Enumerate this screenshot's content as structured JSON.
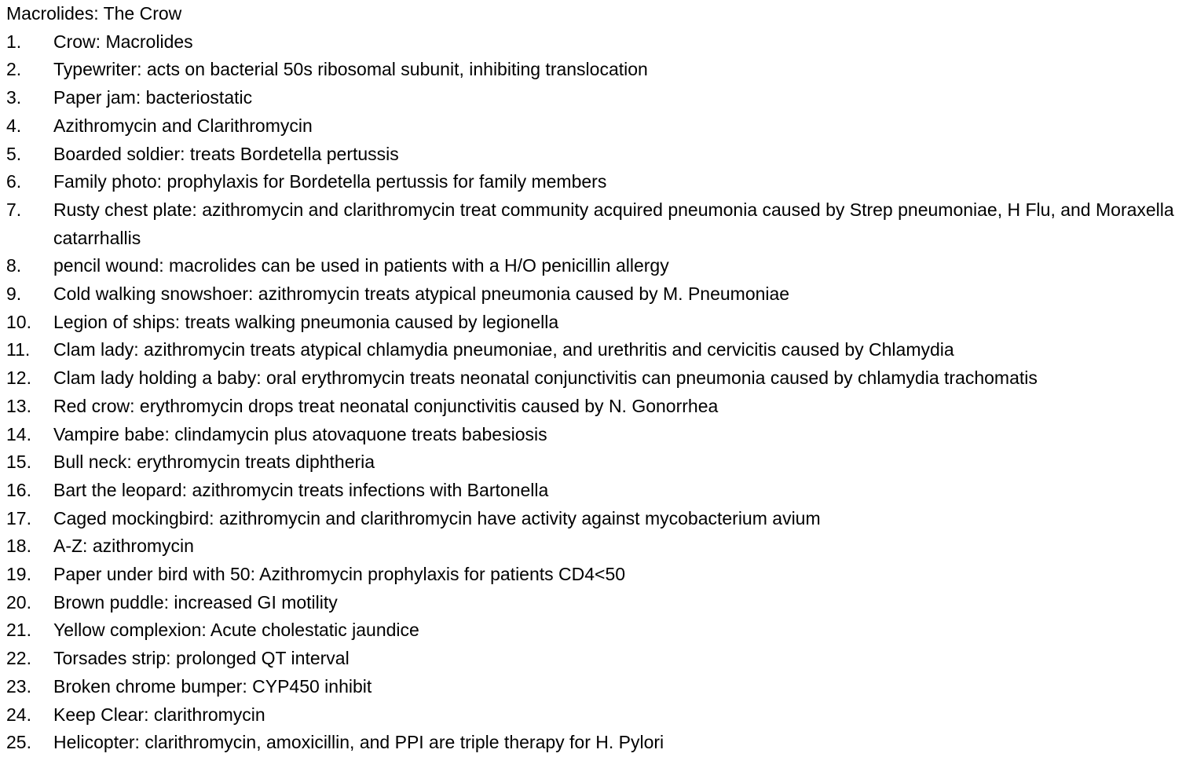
{
  "document": {
    "title": "Macrolides: The Crow",
    "items": [
      {
        "num": "1.",
        "text": "Crow: Macrolides"
      },
      {
        "num": "2.",
        "text": "Typewriter: acts on bacterial 50s ribosomal subunit, inhibiting translocation"
      },
      {
        "num": "3.",
        "text": "Paper jam: bacteriostatic"
      },
      {
        "num": "4.",
        "text": "Azithromycin and Clarithromycin"
      },
      {
        "num": "5.",
        "text": "Boarded soldier: treats Bordetella pertussis"
      },
      {
        "num": "6.",
        "text": "Family photo: prophylaxis for Bordetella pertussis for family members"
      },
      {
        "num": "7.",
        "text": "Rusty chest plate: azithromycin and clarithromycin treat community acquired pneumonia caused by Strep pneumoniae, H Flu, and Moraxella catarrhallis"
      },
      {
        "num": "8.",
        "text": "pencil wound: macrolides can be used in patients with a H/O penicillin allergy"
      },
      {
        "num": "9.",
        "text": "Cold walking snowshoer: azithromycin treats atypical pneumonia caused by M. Pneumoniae"
      },
      {
        "num": "10.",
        "text": "Legion of ships: treats walking pneumonia caused by legionella"
      },
      {
        "num": "11.",
        "text": "Clam lady: azithromycin treats atypical chlamydia pneumoniae, and urethritis and cervicitis caused by Chlamydia"
      },
      {
        "num": "12.",
        "text": "Clam lady holding a baby: oral erythromycin treats neonatal conjunctivitis can pneumonia caused by chlamydia trachomatis"
      },
      {
        "num": "13.",
        "text": "Red crow: erythromycin drops treat neonatal conjunctivitis caused by N. Gonorrhea"
      },
      {
        "num": "14.",
        "text": "Vampire babe: clindamycin plus atovaquone treats babesiosis"
      },
      {
        "num": "15.",
        "text": "Bull neck: erythromycin treats diphtheria"
      },
      {
        "num": "16.",
        "text": "Bart the leopard: azithromycin treats infections with Bartonella"
      },
      {
        "num": "17.",
        "text": "Caged mockingbird: azithromycin and clarithromycin have activity against mycobacterium avium"
      },
      {
        "num": "18.",
        "text": "A-Z: azithromycin"
      },
      {
        "num": "19.",
        "text": "Paper under bird with 50: Azithromycin prophylaxis for patients CD4<50"
      },
      {
        "num": "20.",
        "text": "Brown puddle: increased GI motility"
      },
      {
        "num": "21.",
        "text": "Yellow complexion: Acute cholestatic jaundice"
      },
      {
        "num": "22.",
        "text": "Torsades strip: prolonged QT interval"
      },
      {
        "num": "23.",
        "text": "Broken chrome bumper: CYP450 inhibit"
      },
      {
        "num": "24.",
        "text": "Keep Clear: clarithromycin"
      },
      {
        "num": "25.",
        "text": "Helicopter: clarithromycin, amoxicillin, and PPI are triple therapy for H. Pylori"
      }
    ]
  }
}
